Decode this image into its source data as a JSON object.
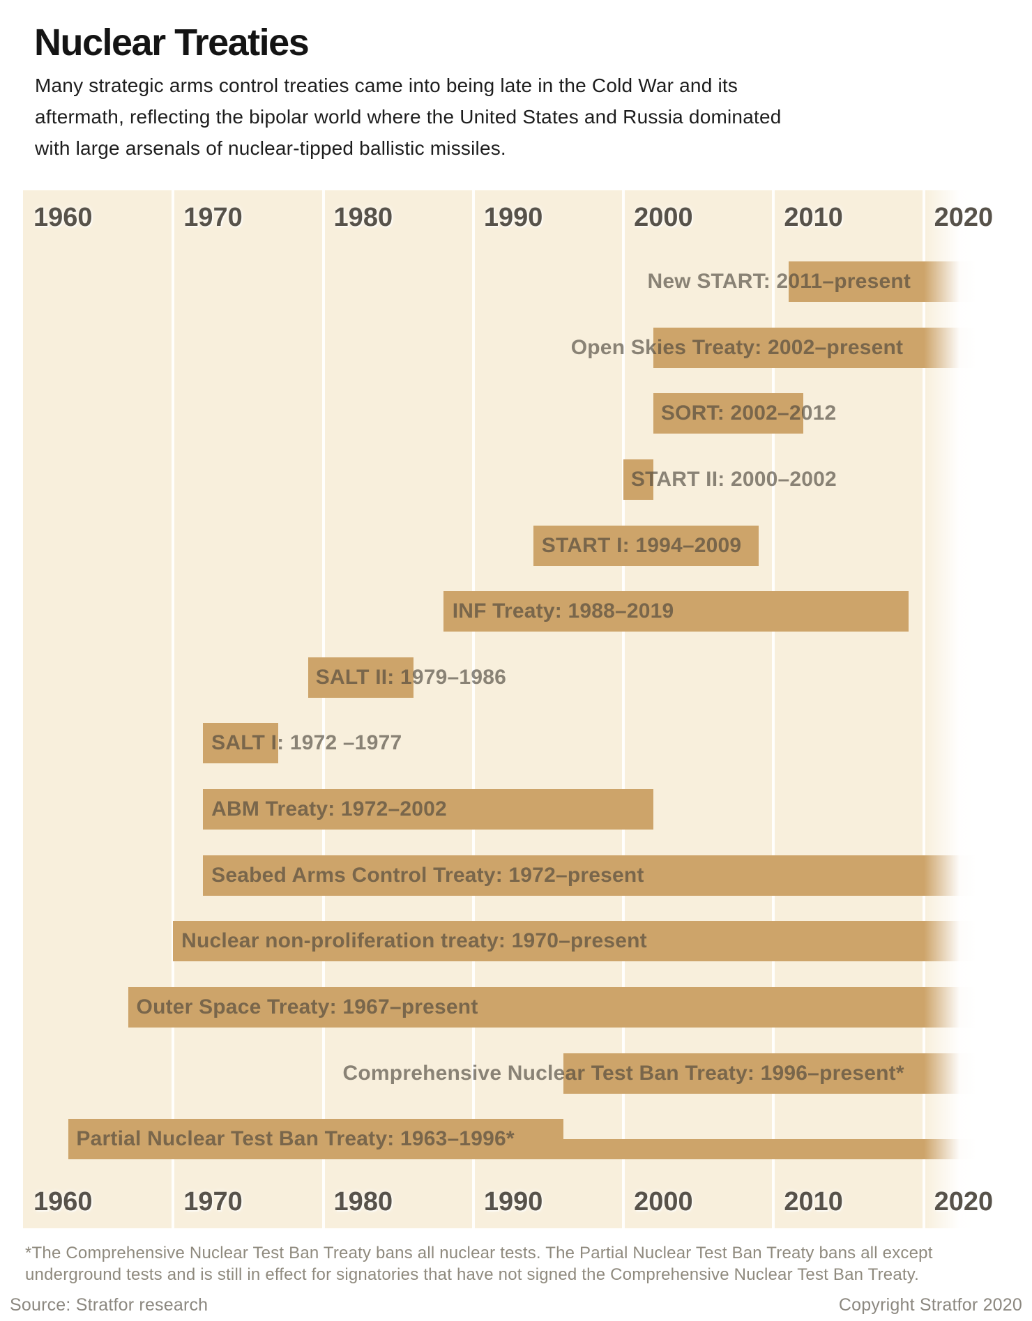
{
  "header": {
    "title": "Nuclear Treaties",
    "subtitle_lines": [
      "Many strategic arms control treaties came into being late in the Cold War and its",
      "aftermath, reflecting the bipolar world where the United States and Russia dominated",
      "with large arsenals of nuclear-tipped ballistic missiles."
    ]
  },
  "chart_data": {
    "type": "bar",
    "variant": "horizontal-timeline",
    "title": "Nuclear Treaties",
    "x_axis": {
      "unit": "year",
      "range_start": 1960,
      "range_end": 2023.5,
      "ticks": [
        1960,
        1970,
        1980,
        1990,
        2000,
        2010,
        2020
      ],
      "tick_rows": [
        "top",
        "bottom"
      ],
      "gridlines": true,
      "present_fade_from": 2020
    },
    "treaties": [
      {
        "name": "New START",
        "label": "New START: 2011–present",
        "start": 2011,
        "end": "present",
        "label_start_year": 2001.6
      },
      {
        "name": "Open Skies Treaty",
        "label": "Open Skies Treaty: 2002–present",
        "start": 2002,
        "end": "present",
        "label_start_year": 1996.5
      },
      {
        "name": "SORT",
        "label": "SORT: 2002–2012",
        "start": 2002,
        "end": 2012,
        "label_start_year": 2002.5
      },
      {
        "name": "START II",
        "label": "START II: 2000–2002",
        "start": 2000,
        "end": 2002,
        "label_start_year": 2000.5
      },
      {
        "name": "START I",
        "label": "START I: 1994–2009",
        "start": 1994,
        "end": 2009,
        "label_start_year": 1994.55
      },
      {
        "name": "INF Treaty",
        "label": "INF Treaty: 1988–2019",
        "start": 1988,
        "end": 2019,
        "label_start_year": 1988.6
      },
      {
        "name": "SALT II",
        "label": "SALT II: 1979–1986",
        "start": 1979,
        "end": 1986,
        "label_start_year": 1979.5
      },
      {
        "name": "SALT I",
        "label": "SALT I: 1972 –1977",
        "start": 1972,
        "end": 1977,
        "label_start_year": 1972.55
      },
      {
        "name": "ABM Treaty",
        "label": "ABM Treaty: 1972–2002",
        "start": 1972,
        "end": 2002,
        "label_start_year": 1972.55
      },
      {
        "name": "Seabed Arms Control Treaty",
        "label": "Seabed Arms Control Treaty: 1972–present",
        "start": 1972,
        "end": "present",
        "label_start_year": 1972.55
      },
      {
        "name": "Nuclear non-proliferation treaty",
        "label": "Nuclear non-proliferation treaty: 1970–present",
        "start": 1970,
        "end": "present",
        "label_start_year": 1970.55
      },
      {
        "name": "Outer Space Treaty",
        "label": "Outer Space Treaty: 1967–present",
        "start": 1967,
        "end": "present",
        "label_start_year": 1967.55
      },
      {
        "name": "Comprehensive Nuclear Test Ban Treaty",
        "label": "Comprehensive Nuclear Test Ban Treaty: 1996–present*",
        "start": 1996,
        "end": "present",
        "label_start_year": 1981.3
      },
      {
        "name": "Partial Nuclear Test Ban Treaty",
        "label": "Partial Nuclear Test Ban Treaty: 1963–1996*",
        "start": 1963,
        "end": 1996,
        "label_start_year": 1963.55,
        "thin_extension": {
          "start": 1996,
          "end": "present"
        }
      }
    ]
  },
  "footer": {
    "footnote_lines": [
      "*The Comprehensive Nuclear Test Ban Treaty bans all nuclear tests. The Partial Nuclear Test Ban Treaty bans all except",
      "underground tests and is still in effect for signatories that have not signed the Comprehensive Nuclear Test Ban Treaty."
    ],
    "source": "Source: Stratfor research",
    "copyright": "Copyright Stratfor 2020"
  },
  "colors": {
    "chart_background": "#f8efdc",
    "bar": "#cda46a",
    "gridline": "rgba(255,255,255,0.9)",
    "bar_label": "rgba(72,67,57,0.63)",
    "axis_label": "#57524a",
    "title_text": "#141414",
    "subtitle_text": "#1d1d1d",
    "footnote_text": "#8f8a7e",
    "credits_text": "#8c8880",
    "page_background": "#ffffff"
  }
}
